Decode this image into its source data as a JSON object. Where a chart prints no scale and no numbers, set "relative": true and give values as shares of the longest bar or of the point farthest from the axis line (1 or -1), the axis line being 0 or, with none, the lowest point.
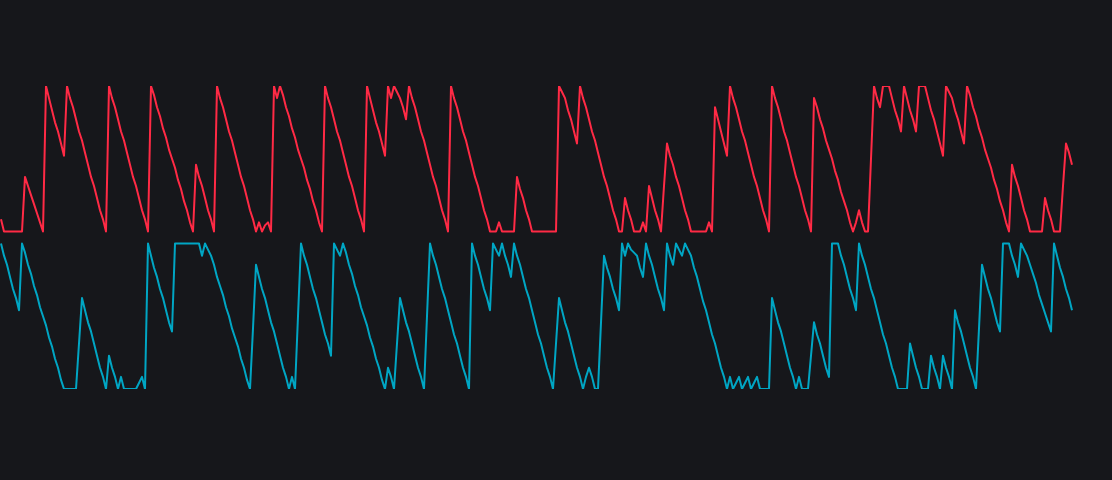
{
  "chart_data": {
    "type": "line",
    "relative": true,
    "marker": "none",
    "tick_labels": false,
    "categories": [
      null,
      null,
      null,
      null,
      null,
      null,
      null,
      null,
      null,
      null,
      null,
      null,
      null,
      null,
      null,
      null,
      null,
      null,
      null,
      null,
      null,
      null,
      null,
      null,
      null,
      null,
      null,
      null,
      null,
      null,
      null,
      null,
      null,
      null,
      null,
      null,
      null,
      null,
      null,
      null,
      null,
      null,
      null,
      null,
      null,
      null,
      null,
      null,
      null,
      null,
      null,
      null,
      null,
      null,
      null,
      null,
      null,
      null,
      null,
      null,
      null,
      null,
      null,
      null,
      null,
      null,
      null,
      null,
      null,
      null,
      null,
      null,
      null,
      null,
      null,
      null,
      null,
      null,
      null,
      null,
      null,
      null,
      null,
      null,
      null,
      null,
      null,
      null,
      null,
      null,
      null,
      null,
      null,
      null,
      null,
      null,
      null,
      null,
      null,
      null,
      null,
      null,
      null,
      null,
      null,
      null,
      null,
      null,
      null,
      null,
      null,
      null,
      null,
      null,
      null,
      null,
      null,
      null,
      null,
      null,
      null,
      null,
      null,
      null,
      null,
      null,
      null,
      null,
      null,
      null,
      null,
      null,
      null,
      null,
      null,
      null,
      null,
      null,
      null,
      null,
      null,
      null,
      null,
      null,
      null,
      null,
      null,
      null,
      null,
      null,
      null,
      null,
      null,
      null,
      null,
      null,
      null,
      null,
      null,
      null,
      null,
      null,
      null,
      null,
      null,
      null,
      null,
      null,
      null,
      null,
      null,
      null,
      null,
      null,
      null,
      null,
      null,
      null,
      null,
      null,
      null,
      null,
      null,
      null,
      null,
      null,
      null,
      null,
      null,
      null,
      null,
      null,
      null,
      null,
      null,
      null,
      null,
      null,
      null,
      null,
      null,
      null,
      null,
      null,
      null,
      null,
      null,
      null,
      null,
      null,
      null,
      null,
      null,
      null,
      null,
      null,
      null,
      null,
      null,
      null,
      null,
      null,
      null,
      null,
      null,
      null,
      null,
      null,
      null,
      null,
      null,
      null,
      null,
      null,
      null,
      null,
      null,
      null,
      null,
      null,
      null,
      null,
      null,
      null,
      null,
      null,
      null,
      null,
      null,
      null,
      null,
      null,
      null,
      null,
      null,
      null,
      null,
      null,
      null,
      null,
      null,
      null,
      null,
      null,
      null,
      null,
      null,
      null,
      null,
      null,
      null,
      null,
      null,
      null,
      null,
      null,
      null,
      null,
      null,
      null,
      null,
      null,
      null,
      null,
      null,
      null,
      null,
      null,
      null,
      null,
      null,
      null,
      null,
      null,
      null,
      null,
      null,
      null,
      null,
      null,
      null,
      null,
      null,
      null,
      null,
      null,
      null,
      null,
      null,
      null,
      null,
      null,
      null,
      null,
      null,
      null,
      null,
      null,
      null,
      null,
      null,
      null,
      null,
      null,
      null,
      null,
      null,
      null,
      null,
      null,
      null,
      null,
      null,
      null,
      null,
      null,
      null,
      null,
      null,
      null,
      null,
      null,
      null,
      null,
      null,
      null,
      null,
      null,
      null,
      null,
      null,
      null,
      null,
      null,
      null,
      null,
      null,
      null
    ],
    "series": [
      {
        "color": "#ff2a45",
        "values": [
          0.56,
          0.52,
          0.52,
          0.52,
          0.52,
          0.52,
          0.52,
          0.52,
          0.7,
          0.67,
          0.64,
          0.61,
          0.58,
          0.55,
          0.52,
          1,
          0.96,
          0.92,
          0.88,
          0.85,
          0.81,
          0.77,
          1,
          0.96,
          0.93,
          0.89,
          0.85,
          0.82,
          0.78,
          0.74,
          0.7,
          0.67,
          0.63,
          0.59,
          0.56,
          0.52,
          1,
          0.96,
          0.93,
          0.89,
          0.85,
          0.82,
          0.78,
          0.74,
          0.7,
          0.67,
          0.63,
          0.59,
          0.56,
          0.52,
          1,
          0.97,
          0.93,
          0.9,
          0.86,
          0.83,
          0.79,
          0.76,
          0.73,
          0.69,
          0.66,
          0.62,
          0.59,
          0.55,
          0.52,
          0.74,
          0.7,
          0.67,
          0.63,
          0.59,
          0.56,
          0.52,
          1,
          0.96,
          0.93,
          0.89,
          0.85,
          0.82,
          0.78,
          0.74,
          0.7,
          0.67,
          0.63,
          0.59,
          0.56,
          0.52,
          0.55,
          0.52,
          0.54,
          0.55,
          0.52,
          1,
          0.96,
          1,
          0.97,
          0.93,
          0.9,
          0.86,
          0.83,
          0.79,
          0.76,
          0.73,
          0.69,
          0.66,
          0.62,
          0.59,
          0.55,
          0.52,
          1,
          0.96,
          0.93,
          0.89,
          0.85,
          0.82,
          0.78,
          0.74,
          0.7,
          0.67,
          0.63,
          0.59,
          0.56,
          0.52,
          1,
          0.96,
          0.92,
          0.88,
          0.85,
          0.81,
          0.77,
          1,
          0.96,
          1,
          0.98,
          0.96,
          0.93,
          0.89,
          1,
          0.96,
          0.93,
          0.89,
          0.85,
          0.82,
          0.78,
          0.74,
          0.7,
          0.67,
          0.63,
          0.59,
          0.56,
          0.52,
          1,
          0.96,
          0.93,
          0.89,
          0.85,
          0.82,
          0.78,
          0.74,
          0.7,
          0.67,
          0.63,
          0.59,
          0.56,
          0.52,
          0.52,
          0.52,
          0.55,
          0.52,
          0.52,
          0.52,
          0.52,
          0.52,
          0.7,
          0.66,
          0.63,
          0.59,
          0.56,
          0.52,
          0.52,
          0.52,
          0.52,
          0.52,
          0.52,
          0.52,
          0.52,
          0.52,
          1,
          0.98,
          0.96,
          0.92,
          0.89,
          0.85,
          0.81,
          1,
          0.96,
          0.93,
          0.89,
          0.85,
          0.82,
          0.78,
          0.74,
          0.7,
          0.67,
          0.63,
          0.59,
          0.56,
          0.52,
          0.52,
          0.63,
          0.59,
          0.56,
          0.52,
          0.52,
          0.52,
          0.55,
          0.52,
          0.67,
          0.63,
          0.59,
          0.56,
          0.52,
          0.67,
          0.81,
          0.77,
          0.74,
          0.7,
          0.67,
          0.63,
          0.59,
          0.56,
          0.52,
          0.52,
          0.52,
          0.52,
          0.52,
          0.52,
          0.55,
          0.52,
          0.93,
          0.89,
          0.85,
          0.81,
          0.77,
          1,
          0.96,
          0.93,
          0.89,
          0.85,
          0.82,
          0.78,
          0.74,
          0.7,
          0.67,
          0.63,
          0.59,
          0.56,
          0.52,
          1,
          0.96,
          0.93,
          0.89,
          0.85,
          0.82,
          0.78,
          0.74,
          0.7,
          0.67,
          0.63,
          0.59,
          0.56,
          0.52,
          0.96,
          0.93,
          0.89,
          0.86,
          0.82,
          0.79,
          0.76,
          0.72,
          0.69,
          0.65,
          0.62,
          0.59,
          0.55,
          0.52,
          0.55,
          0.59,
          0.55,
          0.52,
          0.52,
          0.76,
          1,
          0.96,
          0.93,
          1,
          1,
          1,
          0.96,
          0.92,
          0.89,
          0.85,
          1,
          0.96,
          0.92,
          0.89,
          0.85,
          1,
          1,
          1,
          0.96,
          0.92,
          0.89,
          0.85,
          0.81,
          0.77,
          1,
          0.98,
          0.96,
          0.92,
          0.89,
          0.85,
          0.81,
          1,
          0.97,
          0.93,
          0.9,
          0.86,
          0.83,
          0.79,
          0.76,
          0.73,
          0.69,
          0.66,
          0.62,
          0.59,
          0.55,
          0.52,
          0.74,
          0.7,
          0.67,
          0.63,
          0.59,
          0.56,
          0.52,
          0.52,
          0.52,
          0.52,
          0.52,
          0.63,
          0.59,
          0.56,
          0.52,
          0.52,
          0.52,
          0.67,
          0.81,
          0.78,
          0.74
        ]
      },
      {
        "color": "#00a6c4",
        "values": [
          0.48,
          0.44,
          0.41,
          0.37,
          0.33,
          0.3,
          0.26,
          0.48,
          0.45,
          0.41,
          0.38,
          0.34,
          0.31,
          0.27,
          0.24,
          0.21,
          0.17,
          0.14,
          0.1,
          0.07,
          0.03,
          0,
          0,
          0,
          0,
          0,
          0.15,
          0.3,
          0.26,
          0.22,
          0.19,
          0.15,
          0.11,
          0.07,
          0.04,
          0,
          0.11,
          0.07,
          0.04,
          0,
          0.04,
          0,
          0,
          0,
          0,
          0,
          0.02,
          0.04,
          0,
          0.48,
          0.44,
          0.4,
          0.37,
          0.33,
          0.3,
          0.26,
          0.22,
          0.19,
          0.48,
          0.48,
          0.48,
          0.48,
          0.48,
          0.48,
          0.48,
          0.48,
          0.48,
          0.44,
          0.48,
          0.46,
          0.44,
          0.41,
          0.37,
          0.34,
          0.31,
          0.27,
          0.24,
          0.2,
          0.17,
          0.14,
          0.1,
          0.07,
          0.03,
          0,
          0.2,
          0.41,
          0.37,
          0.33,
          0.3,
          0.26,
          0.22,
          0.19,
          0.15,
          0.11,
          0.07,
          0.04,
          0,
          0.04,
          0,
          0.24,
          0.48,
          0.44,
          0.41,
          0.37,
          0.33,
          0.3,
          0.26,
          0.22,
          0.18,
          0.15,
          0.11,
          0.48,
          0.46,
          0.44,
          0.48,
          0.45,
          0.41,
          0.38,
          0.34,
          0.31,
          0.27,
          0.24,
          0.21,
          0.17,
          0.14,
          0.1,
          0.07,
          0.03,
          0,
          0.07,
          0.04,
          0,
          0.15,
          0.3,
          0.26,
          0.22,
          0.19,
          0.15,
          0.11,
          0.07,
          0.04,
          0,
          0.24,
          0.48,
          0.44,
          0.41,
          0.37,
          0.33,
          0.3,
          0.26,
          0.22,
          0.18,
          0.15,
          0.11,
          0.07,
          0.04,
          0,
          0.48,
          0.44,
          0.41,
          0.37,
          0.33,
          0.3,
          0.26,
          0.48,
          0.46,
          0.44,
          0.48,
          0.44,
          0.41,
          0.37,
          0.48,
          0.44,
          0.41,
          0.37,
          0.33,
          0.3,
          0.26,
          0.22,
          0.18,
          0.15,
          0.11,
          0.07,
          0.04,
          0,
          0.15,
          0.3,
          0.26,
          0.22,
          0.19,
          0.15,
          0.11,
          0.07,
          0.04,
          0,
          0.04,
          0.07,
          0.04,
          0,
          0,
          0.22,
          0.44,
          0.4,
          0.37,
          0.33,
          0.3,
          0.26,
          0.48,
          0.44,
          0.48,
          0.46,
          0.45,
          0.44,
          0.4,
          0.37,
          0.48,
          0.44,
          0.41,
          0.37,
          0.33,
          0.3,
          0.26,
          0.48,
          0.44,
          0.41,
          0.48,
          0.46,
          0.44,
          0.48,
          0.46,
          0.44,
          0.4,
          0.37,
          0.33,
          0.29,
          0.26,
          0.22,
          0.18,
          0.15,
          0.11,
          0.07,
          0.04,
          0,
          0.04,
          0,
          0.02,
          0.04,
          0,
          0.02,
          0.04,
          0,
          0.02,
          0.04,
          0,
          0,
          0,
          0,
          0.3,
          0.26,
          0.22,
          0.19,
          0.15,
          0.11,
          0.07,
          0.04,
          0,
          0.04,
          0,
          0,
          0,
          0.11,
          0.22,
          0.18,
          0.15,
          0.11,
          0.07,
          0.04,
          0.48,
          0.48,
          0.48,
          0.44,
          0.41,
          0.37,
          0.33,
          0.3,
          0.26,
          0.48,
          0.44,
          0.41,
          0.37,
          0.33,
          0.3,
          0.26,
          0.22,
          0.18,
          0.15,
          0.11,
          0.07,
          0.04,
          0,
          0,
          0,
          0,
          0.15,
          0.11,
          0.07,
          0.04,
          0,
          0,
          0,
          0.11,
          0.07,
          0.04,
          0,
          0.11,
          0.07,
          0.04,
          0,
          0.26,
          0.22,
          0.19,
          0.15,
          0.11,
          0.07,
          0.04,
          0,
          0.2,
          0.41,
          0.37,
          0.33,
          0.3,
          0.26,
          0.22,
          0.19,
          0.48,
          0.48,
          0.48,
          0.44,
          0.41,
          0.37,
          0.48,
          0.46,
          0.44,
          0.41,
          0.38,
          0.35,
          0.31,
          0.28,
          0.25,
          0.22,
          0.19,
          0.48,
          0.44,
          0.4,
          0.37,
          0.33,
          0.3,
          0.26
        ]
      }
    ]
  }
}
